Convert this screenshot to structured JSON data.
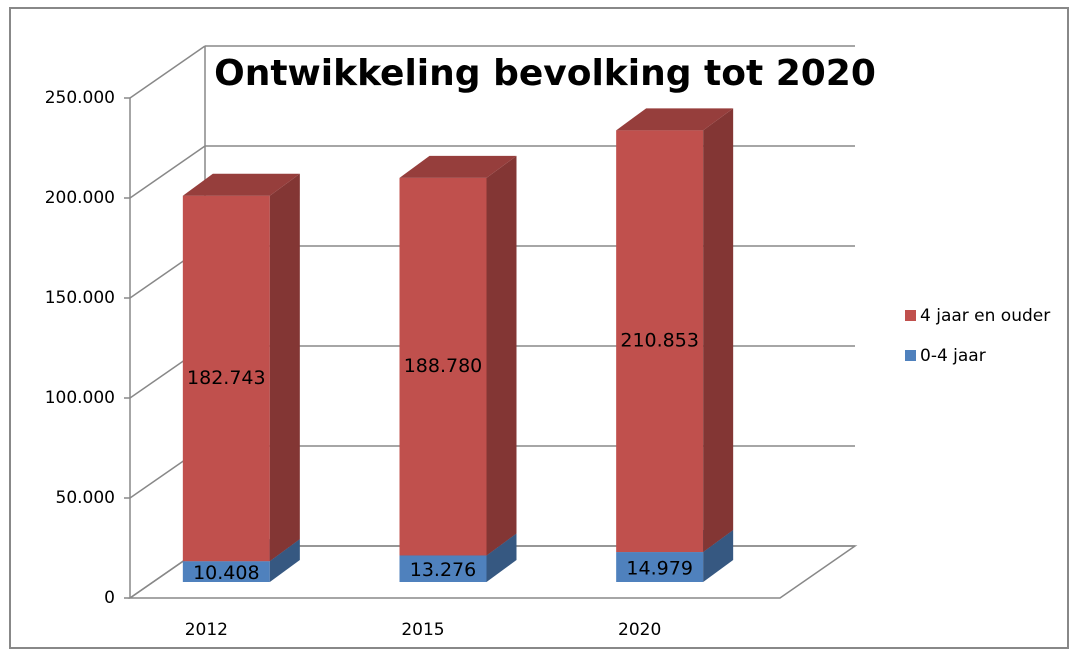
{
  "chart_data": {
    "type": "bar3d_stacked",
    "title": "Ontwikkeling bevolking tot 2020",
    "categories": [
      "2012",
      "2015",
      "2020"
    ],
    "series": [
      {
        "name": "0-4 jaar",
        "color": "#4f81bd",
        "values": [
          10408,
          13276,
          14979
        ],
        "value_labels": [
          "10.408",
          "13.276",
          "14.979"
        ]
      },
      {
        "name": "4 jaar en ouder",
        "color": "#c0504d",
        "values": [
          182743,
          188780,
          210853
        ],
        "value_labels": [
          "182.743",
          "188.780",
          "210.853"
        ]
      }
    ],
    "ylim": [
      0,
      250000
    ],
    "yticks": [
      {
        "value": 0,
        "label": "0"
      },
      {
        "value": 50000,
        "label": "50.000"
      },
      {
        "value": 100000,
        "label": "100.000"
      },
      {
        "value": 150000,
        "label": "150.000"
      },
      {
        "value": 200000,
        "label": "200.000"
      },
      {
        "value": 250000,
        "label": "250.000"
      }
    ],
    "legend": "right",
    "grid": true
  }
}
